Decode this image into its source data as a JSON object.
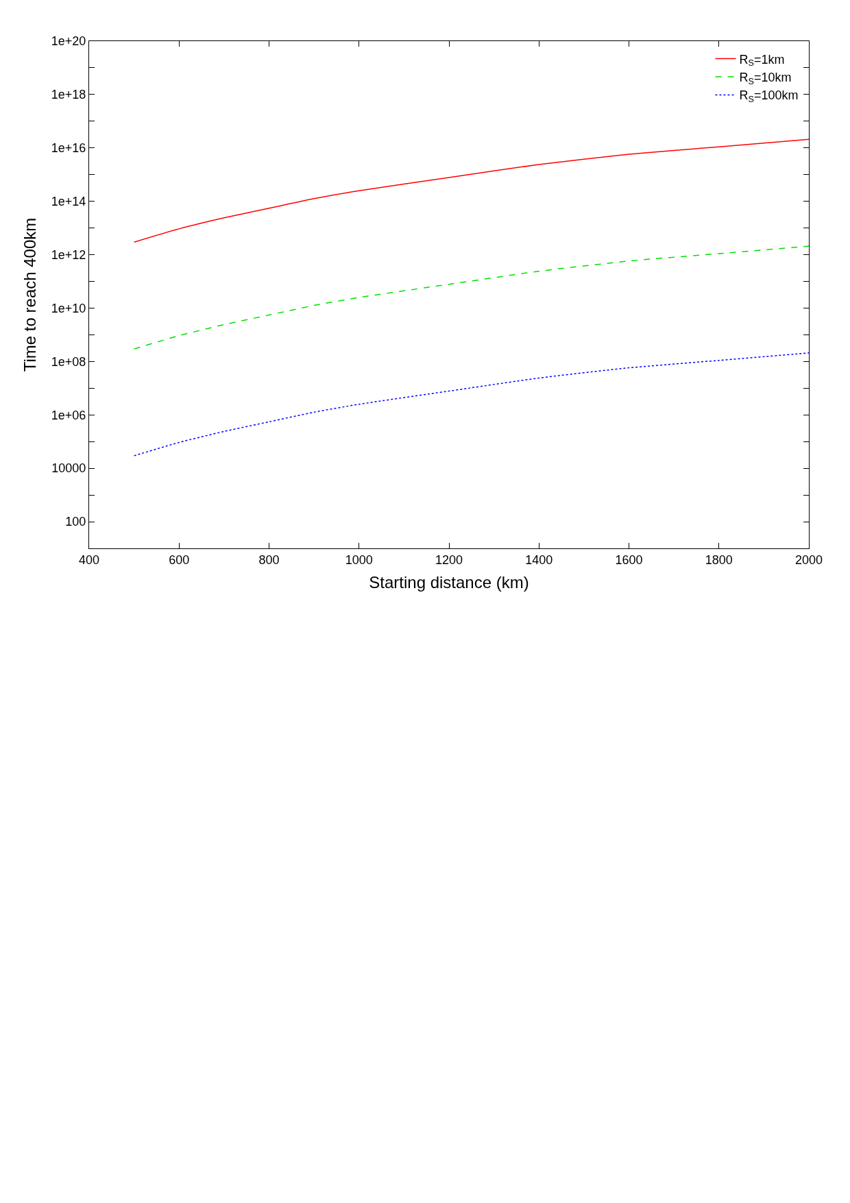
{
  "chart_data": {
    "type": "line",
    "xlabel": "Starting distance (km)",
    "ylabel": "Time to reach 400km",
    "x": [
      500,
      600,
      700,
      800,
      900,
      1000,
      1200,
      1400,
      1600,
      1800,
      2000
    ],
    "series": [
      {
        "name": "R$_{S}$=1km",
        "color": "#ff0000",
        "line_style": "solid",
        "values": [
          2950000000000.0,
          9300000000000.0,
          24000000000000.0,
          55000000000000.0,
          126000000000000.0,
          250000000000000.0,
          780000000000000.0,
          2400000000000000.0,
          5800000000000000.0,
          1.1e+16,
          2.1e+16
        ]
      },
      {
        "name": "R$_{S}$=10km",
        "color": "#00e000",
        "line_style": "dashed",
        "values": [
          295000000.0,
          930000000.0,
          2400000000.0,
          5500000000.0,
          12600000000.0,
          25000000000.0,
          78000000000.0,
          240000000000.0,
          580000000000.0,
          1100000000000.0,
          2100000000000.0
        ]
      },
      {
        "name": "R$_{S}$=100km",
        "color": "#0000ff",
        "line_style": "dotted",
        "values": [
          29500.0,
          93000.0,
          240000.0,
          550000.0,
          1260000.0,
          2500000.0,
          7800000.0,
          24000000.0,
          58000000.0,
          110000000.0,
          210000000.0
        ]
      }
    ],
    "log": "y",
    "marker": "none",
    "legend": "top right",
    "xlim": [
      400,
      2000
    ],
    "xticks": [
      400,
      600,
      800,
      1000,
      1200,
      1400,
      1600,
      1800,
      2000
    ],
    "ylim": [
      10,
      1e+20
    ],
    "yticks": [
      {
        "value": 100,
        "label": "100"
      },
      {
        "value": 1000,
        "label": null
      },
      {
        "value": 10000,
        "label": "10000"
      },
      {
        "value": 100000.0,
        "label": null
      },
      {
        "value": 1000000.0,
        "label": "1e+06"
      },
      {
        "value": 10000000.0,
        "label": null
      },
      {
        "value": 100000000.0,
        "label": "1e+08"
      },
      {
        "value": 1000000000.0,
        "label": null
      },
      {
        "value": 10000000000.0,
        "label": "1e+10"
      },
      {
        "value": 100000000000.0,
        "label": null
      },
      {
        "value": 1000000000000.0,
        "label": "1e+12"
      },
      {
        "value": 10000000000000.0,
        "label": null
      },
      {
        "value": 100000000000000.0,
        "label": "1e+14"
      },
      {
        "value": 1000000000000000.0,
        "label": null
      },
      {
        "value": 1e+16,
        "label": "1e+16"
      },
      {
        "value": 1e+17,
        "label": null
      },
      {
        "value": 1e+18,
        "label": "1e+18"
      },
      {
        "value": 1e+19,
        "label": null
      },
      {
        "value": 1e+20,
        "label": "1e+20"
      }
    ]
  }
}
